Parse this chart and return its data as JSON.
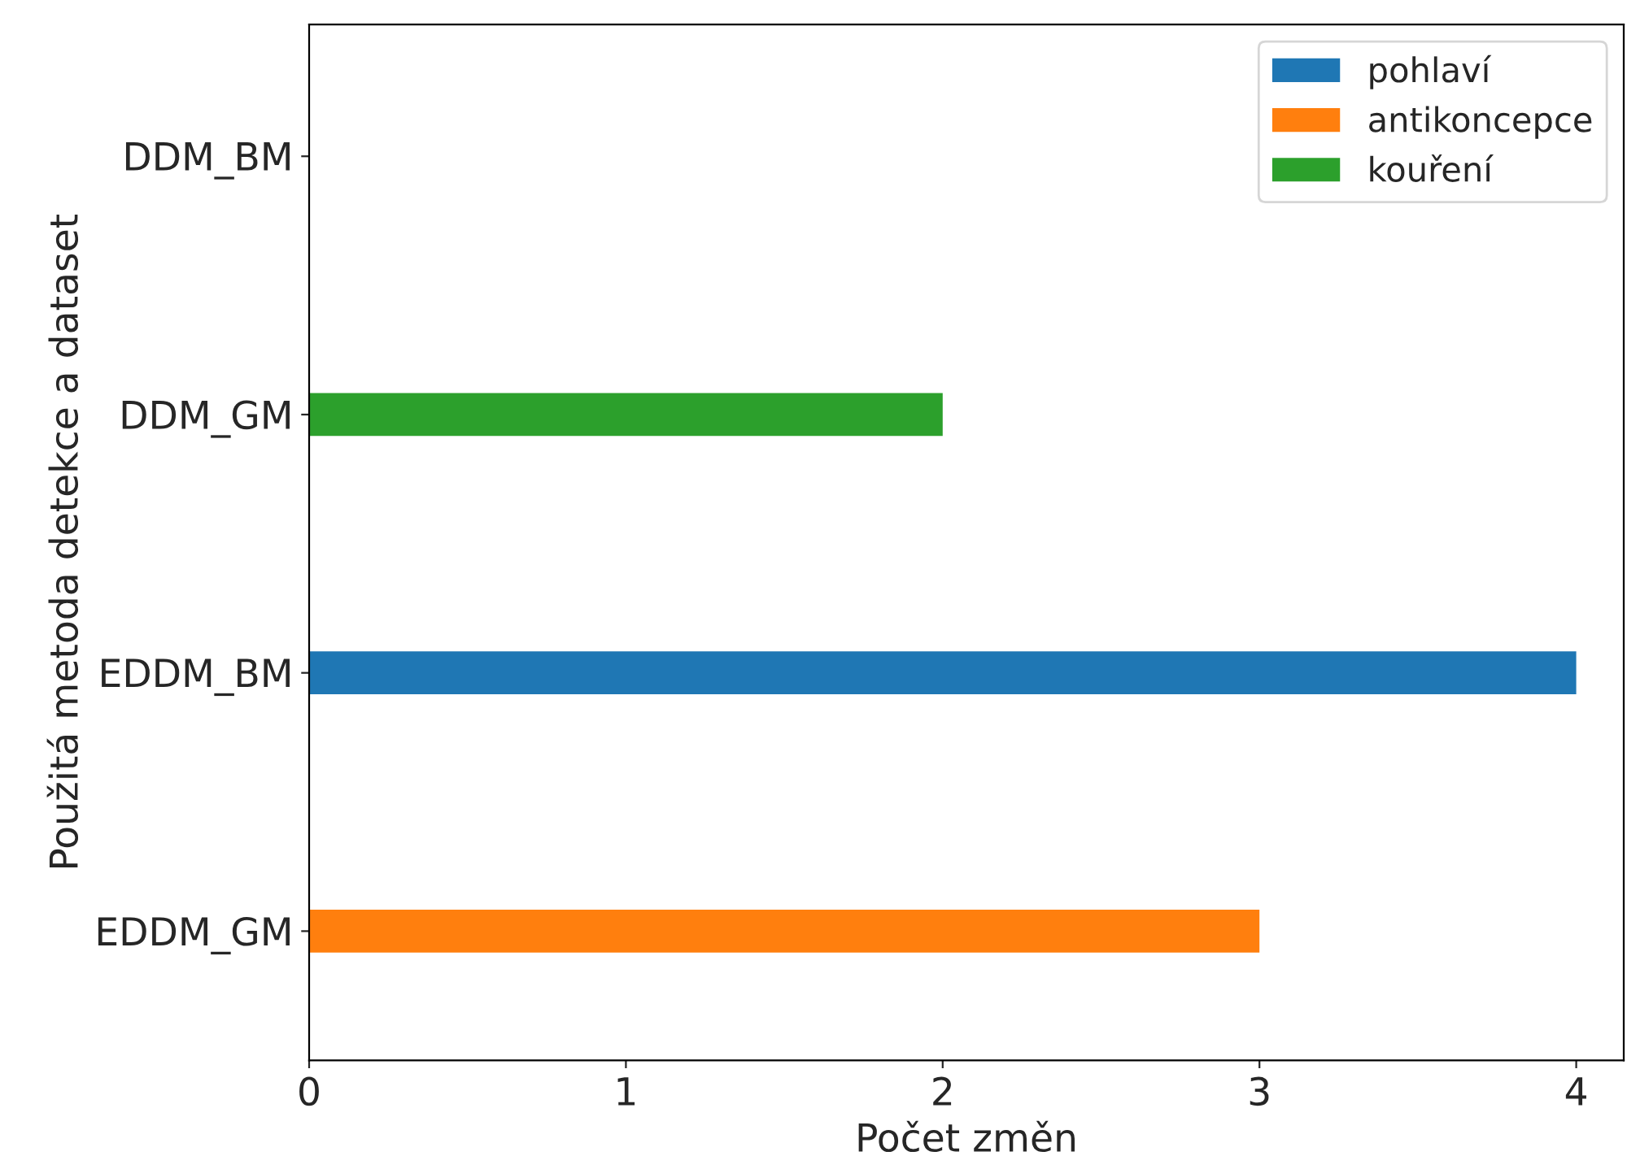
{
  "chart_data": {
    "type": "bar",
    "orientation": "horizontal",
    "stacked": true,
    "xlabel": "Počet změn",
    "ylabel": "Použitá metoda detekce a dataset",
    "categories": [
      "DDM_BM",
      "DDM_GM",
      "EDDM_BM",
      "EDDM_GM"
    ],
    "series": [
      {
        "name": "pohlaví",
        "color": "#1f77b4",
        "values": [
          null,
          null,
          4,
          null
        ]
      },
      {
        "name": "antikoncepce",
        "color": "#ff7f0e",
        "values": [
          null,
          null,
          null,
          3
        ]
      },
      {
        "name": "kouření",
        "color": "#2ca02c",
        "values": [
          null,
          2,
          null,
          null
        ]
      }
    ],
    "xlim": [
      0,
      4.15
    ],
    "xticks": [
      0,
      1,
      2,
      3,
      4
    ],
    "grid": false,
    "legend": "top right"
  }
}
